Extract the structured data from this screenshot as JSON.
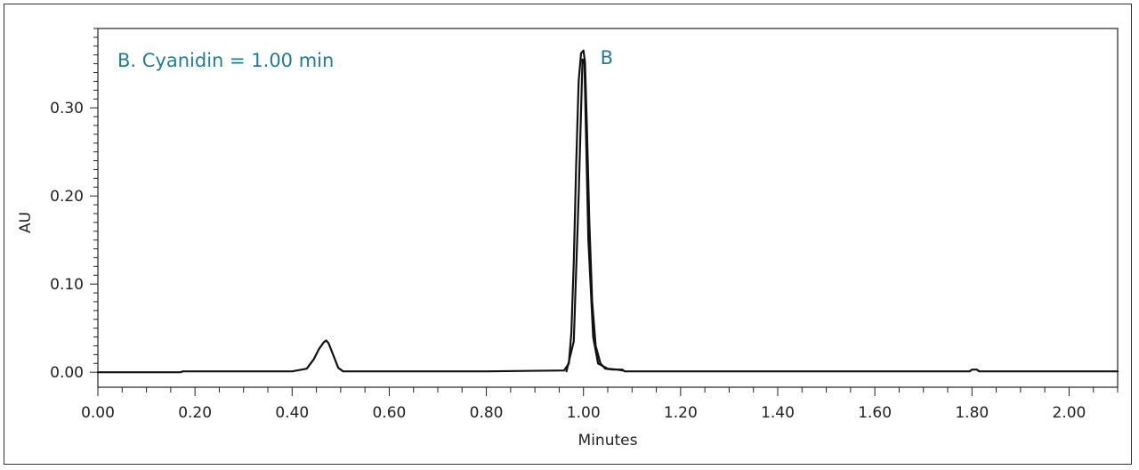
{
  "chart_data": {
    "type": "line",
    "title": "",
    "xlabel": "Minutes",
    "ylabel": "AU",
    "xlim": [
      0.0,
      2.1
    ],
    "ylim": [
      -0.017,
      0.39
    ],
    "x_ticks": [
      0.0,
      0.2,
      0.4,
      0.6,
      0.8,
      1.0,
      1.2,
      1.4,
      1.6,
      1.8,
      2.0
    ],
    "x_tick_labels": [
      "0.00",
      "0.20",
      "0.40",
      "0.60",
      "0.80",
      "1.00",
      "1.20",
      "1.40",
      "1.60",
      "1.80",
      "2.00"
    ],
    "y_ticks": [
      0.0,
      0.1,
      0.2,
      0.3
    ],
    "y_tick_labels": [
      "0.00",
      "0.10",
      "0.20",
      "0.30"
    ],
    "grid": false,
    "annotation": "B. Cyanidin = 1.00 min",
    "peak_label": {
      "text": "B",
      "x": 1.02,
      "y": 0.365
    },
    "series": [
      {
        "x": [
          0.0,
          0.17,
          0.175,
          0.19,
          0.4,
          0.43,
          0.445,
          0.455,
          0.465,
          0.47,
          0.475,
          0.485,
          0.495,
          0.505,
          0.52,
          0.6,
          0.8,
          0.96,
          0.97,
          0.975,
          0.98,
          0.985,
          0.99,
          0.995,
          1.0,
          1.003,
          1.007,
          1.012,
          1.018,
          1.025,
          1.035,
          1.045,
          1.06,
          1.08,
          1.085,
          1.2,
          1.4,
          1.6,
          1.795,
          1.8,
          1.81,
          1.815,
          2.0,
          2.1
        ],
        "y": [
          0.0,
          0.0,
          0.001,
          0.001,
          0.001,
          0.004,
          0.015,
          0.026,
          0.034,
          0.036,
          0.033,
          0.019,
          0.005,
          0.001,
          0.001,
          0.001,
          0.001,
          0.002,
          0.01,
          0.045,
          0.125,
          0.235,
          0.33,
          0.362,
          0.365,
          0.352,
          0.28,
          0.17,
          0.08,
          0.03,
          0.01,
          0.004,
          0.003,
          0.003,
          0.001,
          0.001,
          0.001,
          0.001,
          0.001,
          0.003,
          0.003,
          0.001,
          0.001,
          0.001
        ]
      },
      {
        "x": [
          0.965,
          0.98,
          0.99,
          0.998,
          1.002,
          1.01,
          1.02,
          1.03,
          1.05,
          1.07,
          1.08
        ],
        "y": [
          0.001,
          0.035,
          0.2,
          0.355,
          0.35,
          0.15,
          0.04,
          0.01,
          0.004,
          0.003,
          0.002
        ]
      }
    ]
  },
  "colors": {
    "trace": "#111111",
    "annotation": "#1f7d92",
    "axis": "#222222"
  }
}
